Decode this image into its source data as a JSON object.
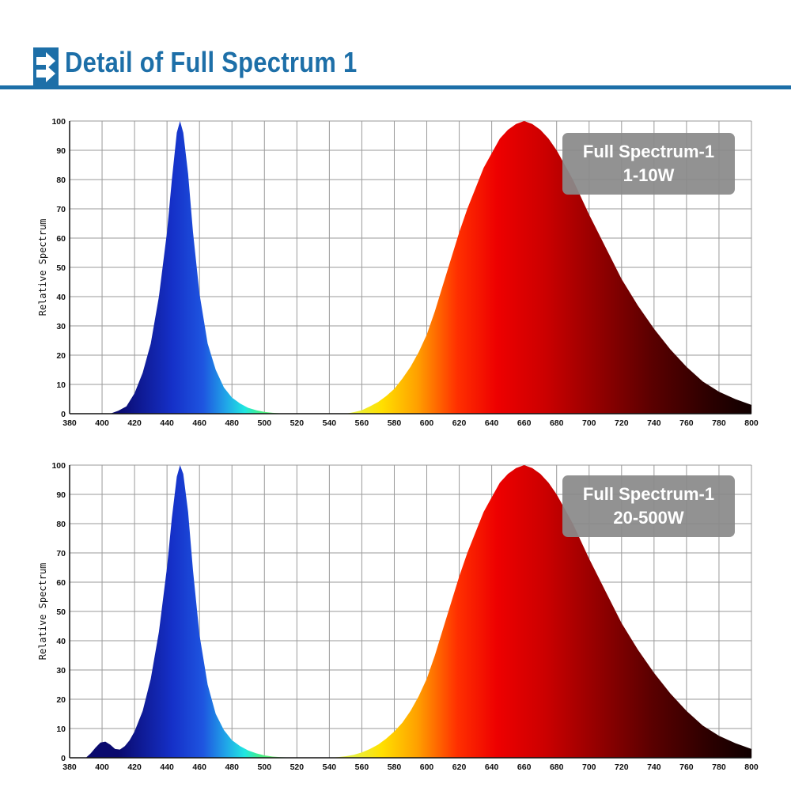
{
  "header": {
    "title": "Detail of Full Spectrum 1",
    "icon": "double-arrow-right-icon",
    "accent": "#1d6fa8"
  },
  "chart_data": [
    {
      "type": "area",
      "title": "",
      "xlabel": "",
      "ylabel": "Relative Spectrum",
      "xlim": [
        380,
        800
      ],
      "ylim": [
        0,
        100
      ],
      "grid": true,
      "x_ticks": [
        380,
        400,
        420,
        440,
        460,
        480,
        500,
        520,
        540,
        560,
        580,
        600,
        620,
        640,
        660,
        680,
        700,
        720,
        740,
        760,
        780,
        800
      ],
      "y_ticks": [
        0,
        10,
        20,
        30,
        40,
        50,
        60,
        70,
        80,
        90,
        100
      ],
      "annotation": [
        "Full Spectrum-1",
        "1-10W"
      ],
      "series": [
        {
          "x": [
            380,
            405,
            410,
            415,
            420,
            425,
            430,
            435,
            440,
            443,
            446,
            448,
            450,
            453,
            456,
            460,
            465,
            470,
            475,
            480,
            485,
            490,
            495,
            500,
            505,
            510,
            520,
            540,
            800
          ],
          "y": [
            0,
            0,
            1,
            2.5,
            7,
            14,
            24,
            40,
            62,
            80,
            96,
            100,
            96,
            82,
            62,
            41,
            24,
            15,
            9,
            5.5,
            3.5,
            2,
            1.2,
            0.6,
            0.3,
            0.1,
            0,
            0,
            0
          ]
        },
        {
          "x": [
            380,
            550,
            555,
            560,
            565,
            570,
            575,
            580,
            585,
            590,
            595,
            600,
            605,
            610,
            615,
            620,
            625,
            630,
            635,
            640,
            645,
            650,
            655,
            660,
            665,
            670,
            675,
            680,
            685,
            690,
            695,
            700,
            710,
            720,
            730,
            740,
            750,
            760,
            770,
            780,
            790,
            800
          ],
          "y": [
            0,
            0,
            0.5,
            1.2,
            2.5,
            4,
            6,
            8.5,
            12,
            16,
            21,
            27,
            35,
            44,
            53,
            62,
            70,
            77,
            84,
            89,
            94,
            97,
            99,
            100,
            99,
            97,
            94,
            90,
            85,
            80,
            74,
            68,
            57,
            46,
            37,
            29,
            22,
            16,
            11,
            7.5,
            5,
            3
          ]
        }
      ]
    },
    {
      "type": "area",
      "title": "",
      "xlabel": "",
      "ylabel": "Relative Spectrum",
      "xlim": [
        380,
        800
      ],
      "ylim": [
        0,
        100
      ],
      "grid": true,
      "x_ticks": [
        380,
        400,
        420,
        440,
        460,
        480,
        500,
        520,
        540,
        560,
        580,
        600,
        620,
        640,
        660,
        680,
        700,
        720,
        740,
        760,
        780,
        800
      ],
      "y_ticks": [
        0,
        10,
        20,
        30,
        40,
        50,
        60,
        70,
        80,
        90,
        100
      ],
      "annotation": [
        "Full Spectrum-1",
        "20-500W"
      ],
      "series": [
        {
          "x": [
            380,
            390,
            393,
            396,
            399,
            402,
            405,
            408,
            411,
            414,
            417,
            420,
            425,
            430,
            435,
            440,
            443,
            446,
            448,
            450,
            453,
            456,
            460,
            465,
            470,
            475,
            480,
            485,
            490,
            495,
            500,
            505,
            510,
            520,
            540,
            800
          ],
          "y": [
            0,
            0,
            1.5,
            3.5,
            5.2,
            5.5,
            4.5,
            3,
            2.8,
            4,
            6,
            9,
            16,
            27,
            43,
            65,
            82,
            96,
            100,
            97,
            84,
            64,
            42,
            25,
            15,
            9.5,
            6,
            4,
            2.5,
            1.5,
            0.8,
            0.4,
            0.2,
            0,
            0,
            0
          ]
        },
        {
          "x": [
            380,
            540,
            545,
            550,
            555,
            560,
            565,
            570,
            575,
            580,
            585,
            590,
            595,
            600,
            605,
            610,
            615,
            620,
            625,
            630,
            635,
            640,
            645,
            650,
            655,
            660,
            665,
            670,
            675,
            680,
            685,
            690,
            695,
            700,
            710,
            720,
            730,
            740,
            750,
            760,
            770,
            780,
            790,
            800
          ],
          "y": [
            0,
            0,
            0.2,
            0.5,
            1,
            1.8,
            3,
            4.5,
            6.5,
            9,
            12,
            16,
            21,
            27,
            35,
            44,
            53,
            62,
            70,
            77,
            84,
            89,
            94,
            97,
            99,
            100,
            99,
            97,
            94,
            90,
            85,
            80,
            74,
            68,
            57,
            46,
            37,
            29,
            22,
            16,
            11,
            7.5,
            5,
            3
          ]
        }
      ]
    }
  ]
}
